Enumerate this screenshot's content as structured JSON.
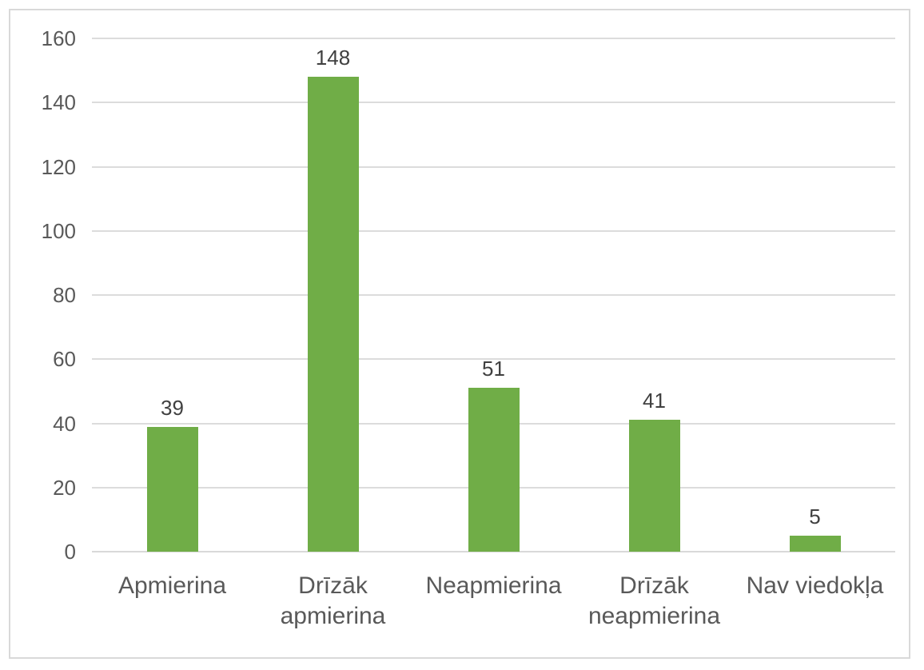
{
  "page": {
    "background_color": "#FFFFFF",
    "frame_border_color": "#D9D9D9"
  },
  "chart_data": {
    "type": "bar",
    "title": "",
    "categories": [
      "Apmierina",
      "Drīzāk apmierina",
      "Neapmierina",
      "Drīzāk neapmierina",
      "Nav viedokļa"
    ],
    "values": [
      39,
      148,
      51,
      41,
      5
    ],
    "value_labels": [
      "39",
      "148",
      "51",
      "41",
      "5"
    ],
    "xlabel": "",
    "ylabel": "",
    "ylim": [
      0,
      160
    ],
    "yticks": [
      0,
      20,
      40,
      60,
      80,
      100,
      120,
      140,
      160
    ],
    "grid": true,
    "legend_position": "none",
    "bar_color": "#70AD47",
    "gridline_color": "#DCDCDC",
    "axis_line_color": "#D9D9D9",
    "tick_label_color": "#595959",
    "category_label_color": "#595959",
    "value_label_color": "#404040"
  }
}
